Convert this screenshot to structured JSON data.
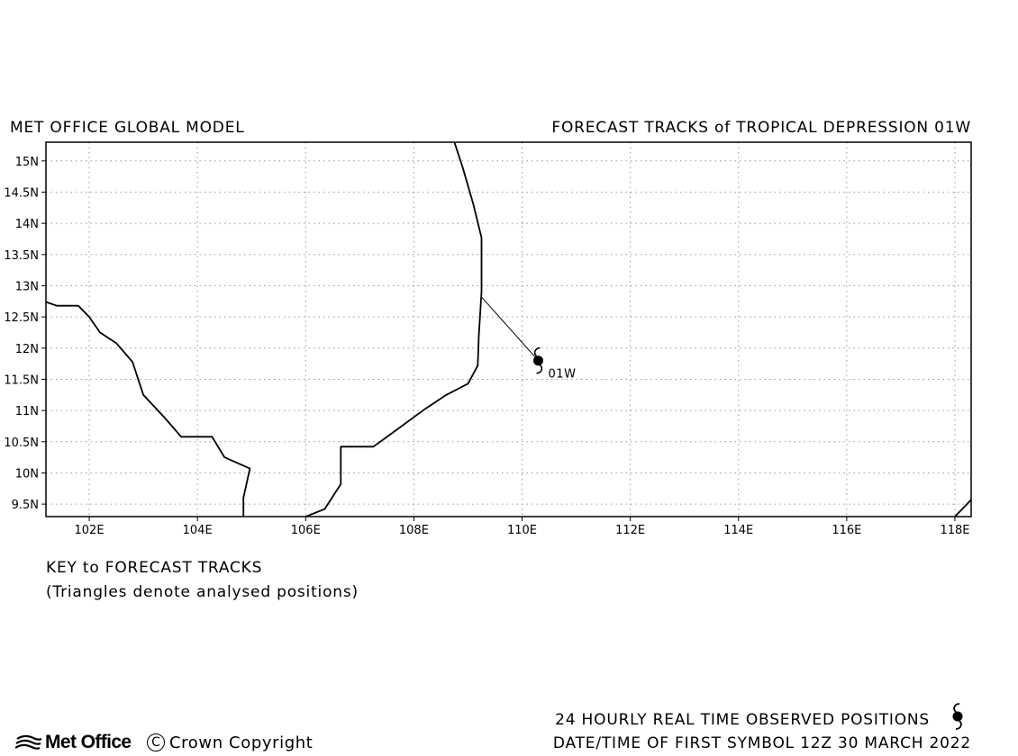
{
  "header": {
    "left": "MET OFFICE GLOBAL MODEL",
    "right": "FORECAST TRACKS of TROPICAL DEPRESSION 01W"
  },
  "map": {
    "lon_range": [
      101.2,
      118.3
    ],
    "lat_range": [
      9.3,
      15.3
    ],
    "x_ticks": [
      {
        "value": 102,
        "label": "102E"
      },
      {
        "value": 104,
        "label": "104E"
      },
      {
        "value": 106,
        "label": "106E"
      },
      {
        "value": 108,
        "label": "108E"
      },
      {
        "value": 110,
        "label": "110E"
      },
      {
        "value": 112,
        "label": "112E"
      },
      {
        "value": 114,
        "label": "114E"
      },
      {
        "value": 116,
        "label": "116E"
      },
      {
        "value": 118,
        "label": "118E"
      }
    ],
    "y_ticks": [
      {
        "value": 9.5,
        "label": "9.5N"
      },
      {
        "value": 10,
        "label": "10N"
      },
      {
        "value": 10.5,
        "label": "10.5N"
      },
      {
        "value": 11,
        "label": "11N"
      },
      {
        "value": 11.5,
        "label": "11.5N"
      },
      {
        "value": 12,
        "label": "12N"
      },
      {
        "value": 12.5,
        "label": "12.5N"
      },
      {
        "value": 13,
        "label": "13N"
      },
      {
        "value": 13.5,
        "label": "13.5N"
      },
      {
        "value": 14,
        "label": "14N"
      },
      {
        "value": 14.5,
        "label": "14.5N"
      },
      {
        "value": 15,
        "label": "15N"
      }
    ],
    "grid": "dotted",
    "coastlines": [
      [
        [
          101.2,
          12.74
        ],
        [
          101.4,
          12.68
        ],
        [
          101.8,
          12.68
        ],
        [
          102.0,
          12.5
        ],
        [
          102.2,
          12.25
        ],
        [
          102.5,
          12.08
        ],
        [
          102.8,
          11.78
        ],
        [
          103.0,
          11.25
        ],
        [
          103.4,
          10.88
        ],
        [
          103.7,
          10.58
        ],
        [
          104.27,
          10.58
        ],
        [
          104.5,
          10.25
        ],
        [
          104.97,
          10.07
        ],
        [
          104.85,
          9.6
        ],
        [
          104.85,
          9.3
        ]
      ],
      [
        [
          106.0,
          9.3
        ],
        [
          106.35,
          9.42
        ],
        [
          106.65,
          9.82
        ],
        [
          106.65,
          10.42
        ],
        [
          107.25,
          10.42
        ],
        [
          107.6,
          10.64
        ],
        [
          108.2,
          11.02
        ],
        [
          108.6,
          11.25
        ],
        [
          109.0,
          11.43
        ],
        [
          109.18,
          11.72
        ],
        [
          109.2,
          12.2
        ],
        [
          109.25,
          12.9
        ],
        [
          109.25,
          13.77
        ],
        [
          109.1,
          14.3
        ],
        [
          108.9,
          14.9
        ],
        [
          108.75,
          15.3
        ]
      ],
      [
        [
          118.0,
          9.3
        ],
        [
          118.3,
          9.57
        ]
      ]
    ],
    "storm": {
      "name": "01W",
      "position": {
        "lon": 110.3,
        "lat": 11.8
      },
      "analysis_line": [
        [
          109.25,
          12.82
        ],
        [
          110.3,
          11.8
        ]
      ]
    }
  },
  "key": {
    "title": "KEY to FORECAST TRACKS",
    "subtitle": "(Triangles denote analysed positions)"
  },
  "footer": {
    "observed_label": "24 HOURLY REAL TIME OBSERVED POSITIONS",
    "datetime_label": "DATE/TIME OF FIRST SYMBOL 12Z 30 MARCH 2022",
    "logo_text": "Met Office",
    "copyright_symbol": "C",
    "copyright_text": "Crown Copyright"
  }
}
